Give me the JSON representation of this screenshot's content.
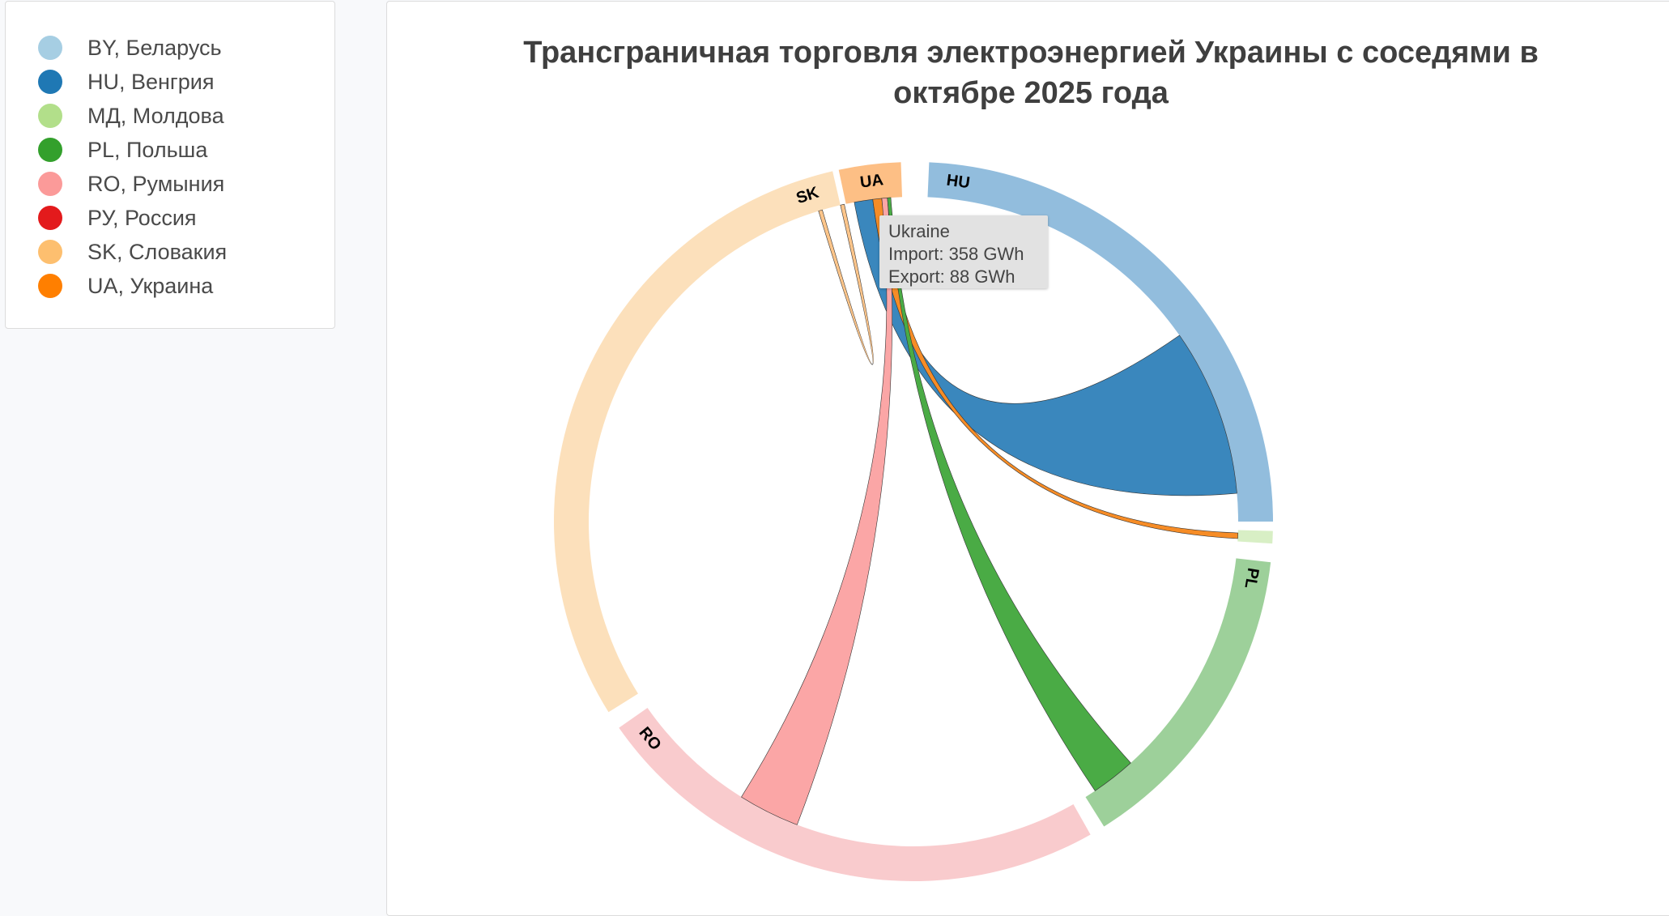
{
  "legend": {
    "items": [
      {
        "code": "BY",
        "label": "BY, Беларусь",
        "color": "#a6cee3"
      },
      {
        "code": "HU",
        "label": "HU, Венгрия",
        "color": "#1f78b4"
      },
      {
        "code": "MD",
        "label": "МД, Молдова",
        "color": "#b2df8a"
      },
      {
        "code": "PL",
        "label": "PL, Польша",
        "color": "#33a02c"
      },
      {
        "code": "RO",
        "label": "RO, Румыния",
        "color": "#fb9a99"
      },
      {
        "code": "RU",
        "label": "РУ, Россия",
        "color": "#e31a1c"
      },
      {
        "code": "SK",
        "label": "SK, Словакия",
        "color": "#fdbf6f"
      },
      {
        "code": "UA",
        "label": "UA, Украина",
        "color": "#ff7f00"
      }
    ]
  },
  "chart": {
    "title_line1": "Трансграничная торговля электроэнергией Украины с соседями в",
    "title_line2": "октябре 2025 года"
  },
  "tooltip": {
    "name": "Ukraine",
    "import": "Import: 358 GWh",
    "export": "Export: 88 GWh"
  },
  "chart_data": {
    "type": "chord",
    "title": "Трансграничная торговля электроэнергией Украины с соседями в октябре 2025 года",
    "unit": "GWh",
    "legend_position": "left",
    "groups": [
      {
        "code": "UA",
        "label": "UA",
        "start_deg": -12,
        "end_deg": -2,
        "color": "#fdbf6f",
        "arc_color": "#fdbf85"
      },
      {
        "code": "HU",
        "label": "HU",
        "start_deg": 2.5,
        "end_deg": 90,
        "color": "#1f78b4",
        "arc_color": "#92bddd"
      },
      {
        "code": "MD",
        "label": "",
        "start_deg": 91.5,
        "end_deg": 93.5,
        "color": "#b2df8a",
        "arc_color": "#d8efc5"
      },
      {
        "code": "PL",
        "label": "PL",
        "start_deg": 96.5,
        "end_deg": 148,
        "color": "#33a02c",
        "arc_color": "#9dd09a"
      },
      {
        "code": "RO",
        "label": "RO",
        "start_deg": 150.5,
        "end_deg": 235,
        "color": "#fb9a99",
        "arc_color": "#f9cbcd"
      },
      {
        "code": "SK",
        "label": "SK",
        "start_deg": 238,
        "end_deg": 347,
        "color": "#fdbf6f",
        "arc_color": "#fce0bb"
      }
    ],
    "ribbons": [
      {
        "from": "UA",
        "to": "HU",
        "a0": -10.5,
        "a1": -7.2,
        "b0": 55,
        "b1": 85,
        "color": "#3a87bd"
      },
      {
        "from": "UA",
        "to": "MD",
        "a0": -7.2,
        "a1": -5.6,
        "b0": 92,
        "b1": 93,
        "color": "#f68c26"
      },
      {
        "from": "UA",
        "to": "RO",
        "a0": -5.6,
        "a1": -4.6,
        "b0": 201,
        "b1": 212,
        "color": "#fba6a6"
      },
      {
        "from": "UA",
        "to": "PL",
        "a0": -4.6,
        "a1": -4.0,
        "b0": 138,
        "b1": 146,
        "color": "#4aab45"
      },
      {
        "from": "UA",
        "to": "SK",
        "a0": -13,
        "a1": -12.3,
        "b0": -17,
        "b1": -16.3,
        "color": "#fdc58a"
      }
    ],
    "ukraine_summary": {
      "import_gwh": 358,
      "export_gwh": 88
    }
  }
}
